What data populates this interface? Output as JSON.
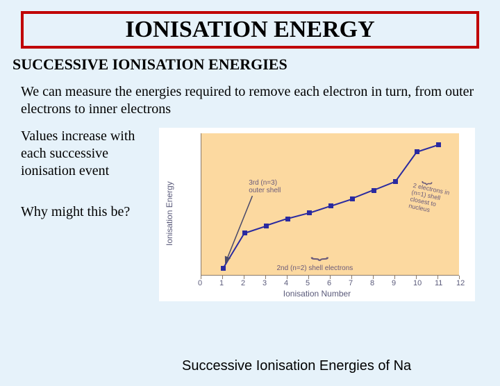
{
  "title": "IONISATION ENERGY",
  "subtitle": "SUCCESSIVE IONISATION ENERGIES",
  "intro": "We can measure the energies required to remove each electron in turn, from outer electrons to inner electrons",
  "left": {
    "p1": "Values increase with each successive ionisation event",
    "p2": "Why might this be?"
  },
  "caption": "Successive Ionisation Energies of Na",
  "chart": {
    "type": "scatter-line",
    "background_color": "#fcd9a0",
    "page_background": "#e6f2fa",
    "axis_color": "#8a7a6a",
    "point_color": "#2a2aa0",
    "line_color": "#2a2aa0",
    "ann_color": "#6a5a7a",
    "xlabel": "Ionisation Number",
    "ylabel": "Ionisation Energy",
    "label_fontsize": 12,
    "xlim": [
      0,
      12
    ],
    "x_ticks": [
      0,
      1,
      2,
      3,
      4,
      5,
      6,
      7,
      8,
      9,
      10,
      11,
      12
    ],
    "ylim": [
      0,
      100
    ],
    "points": [
      {
        "x": 1,
        "y": 5
      },
      {
        "x": 2,
        "y": 30
      },
      {
        "x": 3,
        "y": 35
      },
      {
        "x": 4,
        "y": 40
      },
      {
        "x": 5,
        "y": 44
      },
      {
        "x": 6,
        "y": 49
      },
      {
        "x": 7,
        "y": 54
      },
      {
        "x": 8,
        "y": 60
      },
      {
        "x": 9,
        "y": 66
      },
      {
        "x": 10,
        "y": 87
      },
      {
        "x": 11,
        "y": 92
      }
    ],
    "point_size": 7,
    "line_width": 2,
    "annotations": {
      "outer": "3rd (n=3)\nouter shell",
      "middle": "2nd (n=2) shell electrons",
      "inner": "2 electrons in\n(n=1) shell\nclosest to\nnucleus"
    }
  }
}
